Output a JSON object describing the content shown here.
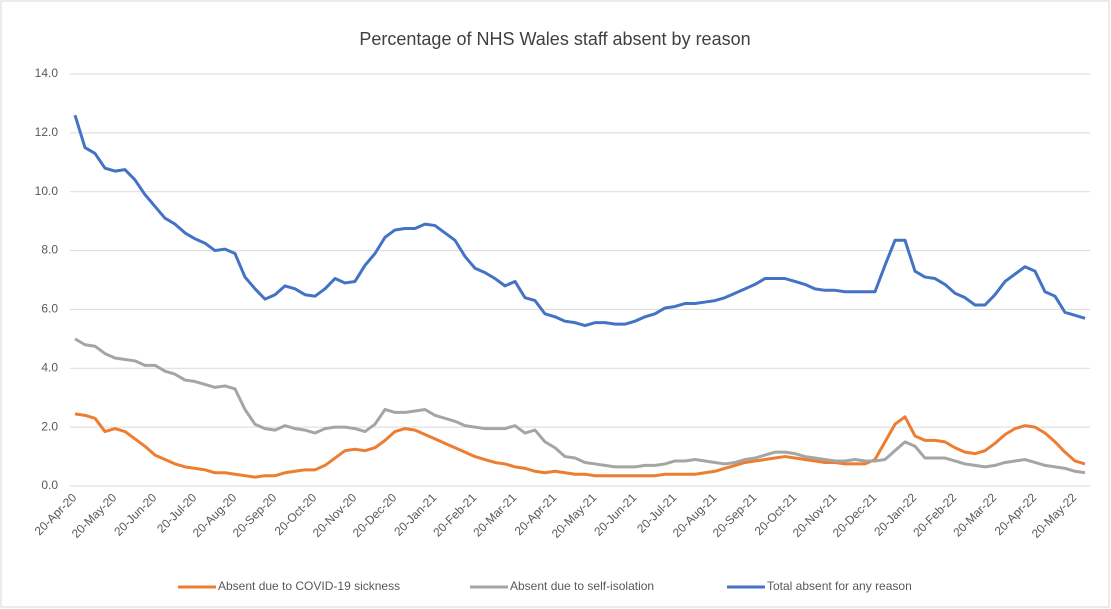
{
  "chart_data": {
    "type": "line",
    "title": "Percentage of NHS Wales staff absent by reason",
    "categories": [
      "20-Apr-20",
      null,
      null,
      null,
      "20-May-20",
      null,
      null,
      null,
      "20-Jun-20",
      null,
      null,
      null,
      "20-Jul-20",
      null,
      null,
      null,
      "20-Aug-20",
      null,
      null,
      null,
      "20-Sep-20",
      null,
      null,
      null,
      "20-Oct-20",
      null,
      null,
      null,
      "20-Nov-20",
      null,
      null,
      null,
      "20-Dec-20",
      null,
      null,
      null,
      "20-Jan-21",
      null,
      null,
      null,
      "20-Feb-21",
      null,
      null,
      null,
      "20-Mar-21",
      null,
      null,
      null,
      "20-Apr-21",
      null,
      null,
      null,
      "20-May-21",
      null,
      null,
      null,
      "20-Jun-21",
      null,
      null,
      null,
      "20-Jul-21",
      null,
      null,
      null,
      "20-Aug-21",
      null,
      null,
      null,
      "20-Sep-21",
      null,
      null,
      null,
      "20-Oct-21",
      null,
      null,
      null,
      "20-Nov-21",
      null,
      null,
      null,
      "20-Dec-21",
      null,
      null,
      null,
      "20-Jan-22",
      null,
      null,
      null,
      "20-Feb-22",
      null,
      null,
      null,
      "20-Mar-22",
      null,
      null,
      null,
      "20-Apr-22",
      null,
      null,
      null,
      "20-May-22",
      null
    ],
    "series": [
      {
        "name": "Absent due to COVID-19 sickness",
        "color": "#ed7d31",
        "values": [
          2.45,
          2.4,
          2.3,
          1.85,
          1.95,
          1.85,
          1.6,
          1.35,
          1.05,
          0.9,
          0.75,
          0.65,
          0.6,
          0.55,
          0.45,
          0.45,
          0.4,
          0.35,
          0.3,
          0.35,
          0.35,
          0.45,
          0.5,
          0.55,
          0.55,
          0.7,
          0.95,
          1.2,
          1.25,
          1.2,
          1.3,
          1.55,
          1.85,
          1.95,
          1.9,
          1.75,
          1.6,
          1.45,
          1.3,
          1.15,
          1.0,
          0.9,
          0.8,
          0.75,
          0.65,
          0.6,
          0.5,
          0.45,
          0.5,
          0.45,
          0.4,
          0.4,
          0.35,
          0.35,
          0.35,
          0.35,
          0.35,
          0.35,
          0.35,
          0.4,
          0.4,
          0.4,
          0.4,
          0.45,
          0.5,
          0.6,
          0.7,
          0.8,
          0.85,
          0.9,
          0.95,
          1.0,
          0.95,
          0.9,
          0.85,
          0.8,
          0.8,
          0.75,
          0.75,
          0.75,
          0.9,
          1.5,
          2.1,
          2.35,
          1.7,
          1.55,
          1.55,
          1.5,
          1.3,
          1.15,
          1.1,
          1.2,
          1.45,
          1.75,
          1.95,
          2.05,
          2.0,
          1.8,
          1.5,
          1.15,
          0.85,
          0.75
        ]
      },
      {
        "name": "Absent due to self-isolation",
        "color": "#a5a5a5",
        "values": [
          5.0,
          4.8,
          4.75,
          4.5,
          4.35,
          4.3,
          4.25,
          4.1,
          4.1,
          3.9,
          3.8,
          3.6,
          3.55,
          3.45,
          3.35,
          3.4,
          3.3,
          2.6,
          2.1,
          1.95,
          1.9,
          2.05,
          1.95,
          1.9,
          1.8,
          1.95,
          2.0,
          2.0,
          1.95,
          1.85,
          2.1,
          2.6,
          2.5,
          2.5,
          2.55,
          2.6,
          2.4,
          2.3,
          2.2,
          2.05,
          2.0,
          1.95,
          1.95,
          1.95,
          2.05,
          1.8,
          1.9,
          1.5,
          1.3,
          1.0,
          0.95,
          0.8,
          0.75,
          0.7,
          0.65,
          0.65,
          0.65,
          0.7,
          0.7,
          0.75,
          0.85,
          0.85,
          0.9,
          0.85,
          0.8,
          0.75,
          0.8,
          0.9,
          0.95,
          1.05,
          1.15,
          1.15,
          1.1,
          1.0,
          0.95,
          0.9,
          0.85,
          0.85,
          0.9,
          0.85,
          0.85,
          0.9,
          1.2,
          1.5,
          1.35,
          0.95,
          0.95,
          0.95,
          0.85,
          0.75,
          0.7,
          0.65,
          0.7,
          0.8,
          0.85,
          0.9,
          0.8,
          0.7,
          0.65,
          0.6,
          0.5,
          0.45
        ]
      },
      {
        "name": "Total absent for any reason",
        "color": "#4472c4",
        "values": [
          12.6,
          11.5,
          11.3,
          10.8,
          10.7,
          10.75,
          10.4,
          9.9,
          9.5,
          9.1,
          8.9,
          8.6,
          8.4,
          8.25,
          8.0,
          8.05,
          7.9,
          7.1,
          6.7,
          6.35,
          6.5,
          6.8,
          6.7,
          6.5,
          6.45,
          6.7,
          7.05,
          6.9,
          6.95,
          7.5,
          7.9,
          8.45,
          8.7,
          8.75,
          8.75,
          8.9,
          8.85,
          8.6,
          8.35,
          7.8,
          7.4,
          7.25,
          7.05,
          6.8,
          6.95,
          6.4,
          6.3,
          5.85,
          5.75,
          5.6,
          5.55,
          5.45,
          5.55,
          5.55,
          5.5,
          5.5,
          5.6,
          5.75,
          5.85,
          6.05,
          6.1,
          6.2,
          6.2,
          6.25,
          6.3,
          6.4,
          6.55,
          6.7,
          6.85,
          7.05,
          7.05,
          7.05,
          6.95,
          6.85,
          6.7,
          6.65,
          6.65,
          6.6,
          6.6,
          6.6,
          6.6,
          7.5,
          8.35,
          8.35,
          7.3,
          7.1,
          7.05,
          6.85,
          6.55,
          6.4,
          6.15,
          6.15,
          6.5,
          6.95,
          7.2,
          7.45,
          7.3,
          6.6,
          6.45,
          5.9,
          5.8,
          5.7
        ]
      }
    ],
    "ylim": [
      0,
      14
    ],
    "yticks": [
      {
        "value": 0,
        "label": "0.0"
      },
      {
        "value": 2,
        "label": "2.0"
      },
      {
        "value": 4,
        "label": "4.0"
      },
      {
        "value": 6,
        "label": "6.0"
      },
      {
        "value": 8,
        "label": "8.0"
      },
      {
        "value": 10,
        "label": "10.0"
      },
      {
        "value": 12,
        "label": "12.0"
      },
      {
        "value": 14,
        "label": "14.0"
      }
    ],
    "grid": true,
    "legend": "bottom"
  }
}
